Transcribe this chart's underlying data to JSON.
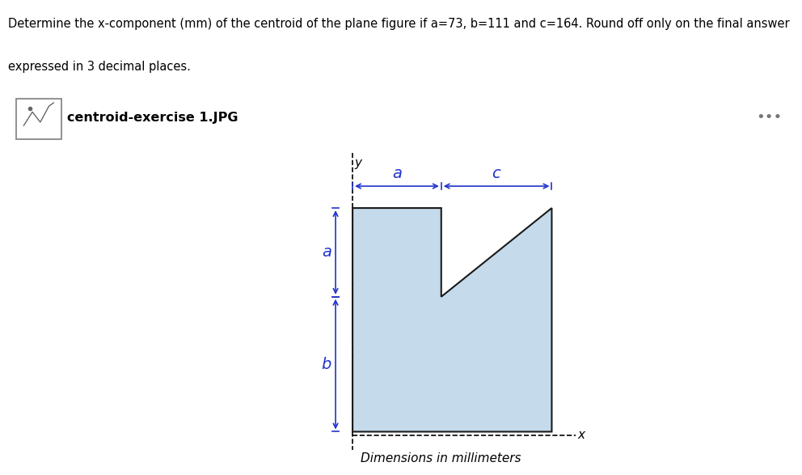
{
  "file_label": "centroid-exercise 1.JPG",
  "subtitle": "Dimensions in millimeters",
  "a": 73,
  "b": 111,
  "c": 164,
  "shape_fill_color": "#c5daea",
  "shape_edge_color": "#1a1a1a",
  "label_color": "#2233cc",
  "fig_bg": "#ffffff",
  "line1": "Determine the x-component (mm) of the centroid of the plane figure if a=73, b=111 and c=164. Round off only on the final answer",
  "line2": "expressed in 3 decimal places."
}
